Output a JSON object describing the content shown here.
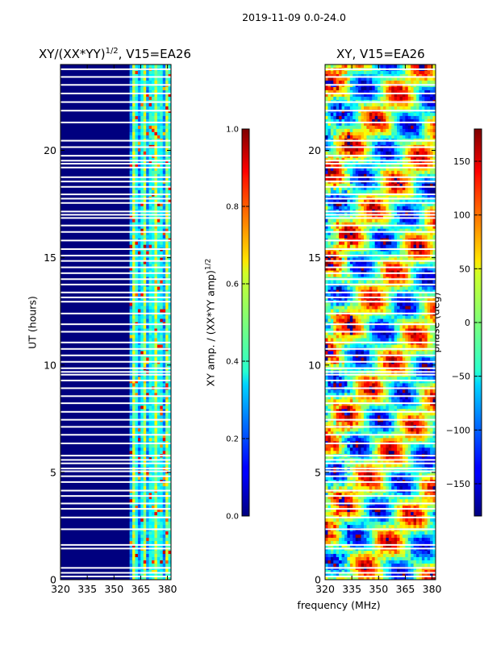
{
  "suptitle": "2019-11-09 0.0-24.0",
  "chart_data": [
    {
      "type": "heatmap",
      "title": "XY/(XX*YY)",
      "title_sup": "1/2",
      "title_suffix": ", V15=EA26",
      "xlabel": "",
      "ylabel": "UT (hours)",
      "xlim": [
        320,
        382
      ],
      "ylim": [
        0,
        24
      ],
      "xticks": [
        "320",
        "335",
        "350",
        "365",
        "380"
      ],
      "yticks": [
        "0",
        "5",
        "10",
        "15",
        "20"
      ],
      "colorbar": {
        "label": "XY amp. / (XX*YY amp)",
        "label_sup": "1/2",
        "range": [
          0.0,
          1.0
        ],
        "ticks": [
          "0.0",
          "0.2",
          "0.4",
          "0.6",
          "0.8",
          "1.0"
        ],
        "colormap": "jet"
      }
    },
    {
      "type": "heatmap",
      "title": "XY, V15=EA26",
      "xlabel": "frequency (MHz)",
      "ylabel": "",
      "xlim": [
        320,
        382
      ],
      "ylim": [
        0,
        24
      ],
      "xticks": [
        "320",
        "335",
        "350",
        "365",
        "380"
      ],
      "yticks": [
        "0",
        "5",
        "10",
        "15",
        "20"
      ],
      "colorbar": {
        "label": "phase (deg)",
        "range": [
          -180,
          180
        ],
        "ticks": [
          "150",
          "100",
          "50",
          "0",
          "−50",
          "−100",
          "−150"
        ],
        "colormap": "jet"
      }
    }
  ],
  "flagged_times_ut": [
    0.15,
    0.32,
    0.55,
    1.45,
    1.62,
    2.35,
    2.9,
    3.3,
    3.55,
    3.9,
    4.15,
    4.55,
    4.82,
    5.05,
    5.18,
    5.42,
    5.58,
    5.78,
    6.35,
    6.75,
    7.12,
    7.45,
    7.82,
    8.22,
    8.55,
    8.92,
    9.28,
    9.55,
    9.68,
    9.85,
    10.15,
    10.45,
    10.75,
    11.05,
    11.55,
    11.9,
    12.4,
    12.95,
    13.15,
    13.38,
    13.75,
    14.0,
    14.28,
    14.55,
    14.85,
    15.1,
    15.4,
    15.8,
    16.2,
    16.5,
    16.85,
    17.0,
    17.15,
    17.55,
    17.75,
    17.95,
    18.3,
    18.55,
    18.75,
    19.2,
    19.38,
    19.52,
    19.75,
    20.15,
    20.45,
    21.3,
    21.85,
    22.25,
    22.65,
    23.05,
    23.42,
    23.78
  ]
}
